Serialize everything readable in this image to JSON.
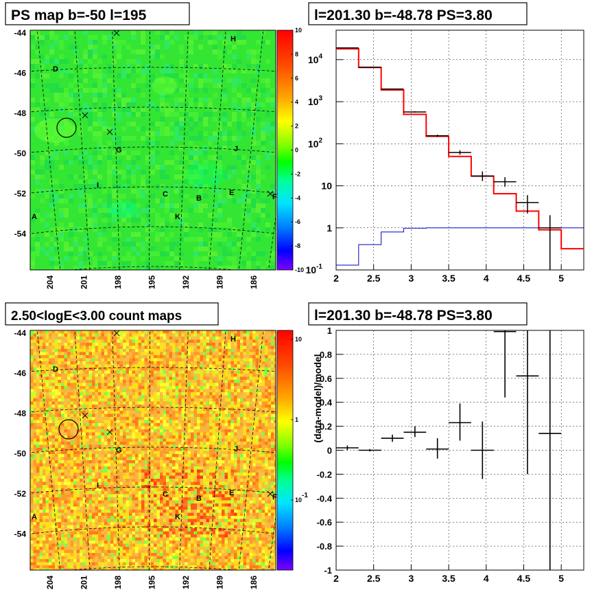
{
  "colors": {
    "map_green": "#33e633",
    "spectrum_red": "#ff0000",
    "spectrum_blue": "#0000cc",
    "grid": "#000000"
  },
  "panels": {
    "ps_map": {
      "title": "PS map b=-50 l=195"
    },
    "spectrum": {
      "title": "l=201.30 b=-48.78 PS=3.80"
    },
    "count_map": {
      "title": "2.50<logE<3.00 count maps"
    },
    "residual": {
      "title": "l=201.30 b=-48.78 PS=3.80"
    }
  },
  "chart_data": [
    {
      "type": "heatmap",
      "title": "PS map b=-50 l=195",
      "x_ticks": [
        "204",
        "201",
        "198",
        "195",
        "192",
        "189",
        "186"
      ],
      "y_ticks": [
        "-44",
        "-46",
        "-48",
        "-50",
        "-52",
        "-54"
      ],
      "colorbar_ticks": [
        "10",
        "8",
        "6",
        "4",
        "2",
        "0",
        "-2",
        "-4",
        "-6",
        "-8",
        "-10"
      ],
      "colorbar_range": [
        -10,
        10
      ],
      "sources": [
        "A",
        "B",
        "C",
        "D",
        "E",
        "F",
        "G",
        "H",
        "I",
        "J",
        "K"
      ],
      "circle_marker": {
        "l": 201.3,
        "b": -48.78
      }
    },
    {
      "type": "line",
      "title": "l=201.30 b=-48.78 PS=3.80",
      "xlim": [
        2,
        5.3
      ],
      "y_scale": "log",
      "ylim": [
        0.1,
        50000
      ],
      "x_ticks": [
        "2",
        "2.5",
        "3",
        "3.5",
        "4",
        "4.5",
        "5"
      ],
      "y_ticks": [
        "10^-1",
        "1",
        "10",
        "10^2",
        "10^3",
        "10^4"
      ],
      "bin_edges": [
        2.0,
        2.3,
        2.6,
        2.9,
        3.2,
        3.5,
        3.8,
        4.1,
        4.4,
        4.7,
        5.0,
        5.3
      ],
      "series": [
        {
          "color": "red",
          "values": [
            18000,
            6500,
            1900,
            500,
            150,
            50,
            17,
            6.5,
            2.5,
            0.9,
            0.32
          ]
        },
        {
          "color": "blue",
          "values": [
            0.13,
            0.4,
            0.8,
            0.98,
            1.0,
            1.0,
            1.0,
            1.0,
            1.0,
            1.0,
            1.0
          ]
        }
      ],
      "data_points": [
        {
          "x": 2.15,
          "y": 19000,
          "xerr": 0.15,
          "ylo": 18800,
          "yhi": 19200
        },
        {
          "x": 2.45,
          "y": 6600,
          "xerr": 0.15,
          "ylo": 6500,
          "yhi": 6700
        },
        {
          "x": 2.75,
          "y": 2000,
          "xerr": 0.15,
          "ylo": 1950,
          "yhi": 2050
        },
        {
          "x": 3.05,
          "y": 570,
          "xerr": 0.15,
          "ylo": 550,
          "yhi": 590
        },
        {
          "x": 3.35,
          "y": 155,
          "xerr": 0.15,
          "ylo": 145,
          "yhi": 165
        },
        {
          "x": 3.65,
          "y": 62,
          "xerr": 0.15,
          "ylo": 55,
          "yhi": 70
        },
        {
          "x": 3.95,
          "y": 17,
          "xerr": 0.15,
          "ylo": 13,
          "yhi": 22
        },
        {
          "x": 4.25,
          "y": 12.5,
          "xerr": 0.15,
          "ylo": 9.5,
          "yhi": 16
        },
        {
          "x": 4.55,
          "y": 4,
          "xerr": 0.15,
          "ylo": 2.2,
          "yhi": 6
        },
        {
          "x": 4.85,
          "y": 1,
          "xerr": 0.15,
          "ylo": 0.1,
          "yhi": 2
        }
      ]
    },
    {
      "type": "heatmap",
      "title": "2.50<logE<3.00 count maps",
      "x_ticks": [
        "204",
        "201",
        "198",
        "195",
        "192",
        "189",
        "186"
      ],
      "y_ticks": [
        "-44",
        "-46",
        "-48",
        "-50",
        "-52",
        "-54"
      ],
      "colorbar_scale": "log",
      "colorbar_ticks": [
        "10",
        "1",
        "10^-1"
      ],
      "sources": [
        "A",
        "B",
        "C",
        "D",
        "E",
        "F",
        "G",
        "H",
        "I",
        "J",
        "K"
      ],
      "circle_marker": {
        "l": 201.3,
        "b": -48.78
      }
    },
    {
      "type": "scatter",
      "title": "l=201.30 b=-48.78 PS=3.80",
      "ylabel": "(data-model)/model",
      "xlim": [
        2,
        5.3
      ],
      "ylim": [
        -1,
        1
      ],
      "x_ticks": [
        "2",
        "2.5",
        "3",
        "3.5",
        "4",
        "4.5",
        "5"
      ],
      "y_ticks": [
        "1",
        "0.8",
        "0.6",
        "0.4",
        "0.2",
        "0",
        "-0.2",
        "-0.4",
        "-0.6",
        "-0.8",
        "-1"
      ],
      "data_points": [
        {
          "x": 2.15,
          "y": 0.02,
          "xerr": 0.15,
          "ylo": 0.0,
          "yhi": 0.04
        },
        {
          "x": 2.45,
          "y": 0.0,
          "xerr": 0.15,
          "ylo": -0.01,
          "yhi": 0.01
        },
        {
          "x": 2.75,
          "y": 0.1,
          "xerr": 0.15,
          "ylo": 0.07,
          "yhi": 0.13
        },
        {
          "x": 3.05,
          "y": 0.15,
          "xerr": 0.15,
          "ylo": 0.11,
          "yhi": 0.2
        },
        {
          "x": 3.35,
          "y": 0.01,
          "xerr": 0.15,
          "ylo": -0.07,
          "yhi": 0.1
        },
        {
          "x": 3.65,
          "y": 0.23,
          "xerr": 0.15,
          "ylo": 0.08,
          "yhi": 0.39
        },
        {
          "x": 3.95,
          "y": 0.0,
          "xerr": 0.15,
          "ylo": -0.24,
          "yhi": 0.24
        },
        {
          "x": 4.25,
          "y": 0.99,
          "xerr": 0.15,
          "ylo": 0.44,
          "yhi": 1.0
        },
        {
          "x": 4.55,
          "y": 0.62,
          "xerr": 0.15,
          "ylo": -0.2,
          "yhi": 1.0
        },
        {
          "x": 4.85,
          "y": 0.14,
          "xerr": 0.15,
          "ylo": -1.0,
          "yhi": 1.0
        }
      ]
    }
  ]
}
